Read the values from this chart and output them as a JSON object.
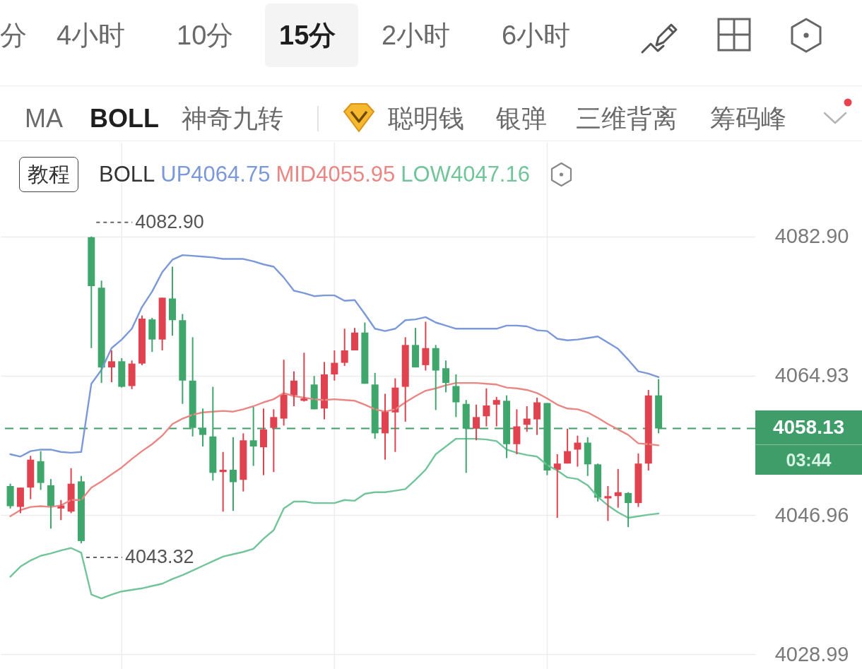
{
  "chart_data": [
    {
      "type": "other",
      "annotations": [
        "分",
        "4小时",
        "10分",
        "15分",
        "2小时",
        "6小时"
      ]
    },
    {
      "type": "other",
      "annotations": [
        "MA",
        "BOLL",
        "神奇九转",
        "聪明钱",
        "银弹",
        "三维背离",
        "筹码峰"
      ]
    },
    {
      "type": "candlestick",
      "categories": [
        null,
        null,
        null,
        null,
        null,
        null,
        null,
        null,
        null,
        null,
        null,
        null,
        null,
        null,
        null,
        null,
        null,
        null,
        null,
        null,
        null,
        null,
        null,
        null,
        null,
        null,
        null,
        null,
        null,
        null,
        null,
        null,
        null,
        null,
        null,
        null,
        null,
        null,
        null,
        null,
        null,
        null,
        null,
        null,
        null,
        null,
        null,
        null,
        null,
        null,
        null,
        null,
        null,
        null,
        null,
        null,
        null,
        null,
        null,
        null,
        null,
        null,
        null,
        null,
        null
      ],
      "ohlc": [
        [
          4050.7,
          4051.0,
          4047.8,
          4048.1
        ],
        [
          4048.0,
          4050.5,
          4047.2,
          4050.5
        ],
        [
          4050.5,
          4054.6,
          4049.0,
          4054.1
        ],
        [
          4053.9,
          4055.2,
          4050.2,
          4051.1
        ],
        [
          4050.8,
          4051.6,
          4045.2,
          4048.1
        ],
        [
          4047.8,
          4048.9,
          4046.3,
          4048.2
        ],
        [
          4047.4,
          4053.0,
          4047.2,
          4051.0
        ],
        [
          4051.3,
          4052.0,
          4043.32,
          4043.6
        ],
        [
          4082.8,
          4082.9,
          4068.5,
          4076.5
        ],
        [
          4076.3,
          4077.2,
          4064.0,
          4066.0
        ],
        [
          4066.0,
          4068.2,
          4064.1,
          4066.8
        ],
        [
          4066.8,
          4067.2,
          4063.4,
          4063.5
        ],
        [
          4063.6,
          4066.9,
          4063.2,
          4066.5
        ],
        [
          4066.5,
          4072.7,
          4066.3,
          4072.3
        ],
        [
          4072.2,
          4072.4,
          4068.0,
          4069.6
        ],
        [
          4069.6,
          4075.0,
          4068.2,
          4075.0
        ],
        [
          4074.9,
          4079.0,
          4070.1,
          4072.1
        ],
        [
          4072.1,
          4072.9,
          4061.3,
          4064.3
        ],
        [
          4064.3,
          4069.9,
          4057.1,
          4058.2
        ],
        [
          4058.2,
          4060.7,
          4055.8,
          4057.3
        ],
        [
          4057.1,
          4063.5,
          4051.4,
          4052.4
        ],
        [
          4052.5,
          4055.1,
          4047.4,
          4052.8
        ],
        [
          4052.8,
          4057.0,
          4047.5,
          4051.2
        ],
        [
          4051.5,
          4057.5,
          4050.0,
          4056.6
        ],
        [
          4056.6,
          4060.9,
          4053.3,
          4055.8
        ],
        [
          4055.7,
          4060.7,
          4052.1,
          4058.0
        ],
        [
          4058.2,
          4060.6,
          4052.5,
          4059.6
        ],
        [
          4059.4,
          4067.0,
          4058.5,
          4062.5
        ],
        [
          4062.4,
          4065.5,
          4061.0,
          4064.3
        ],
        [
          4061.7,
          4067.9,
          4061.6,
          4062.0
        ],
        [
          4063.8,
          4064.9,
          4060.6,
          4060.6
        ],
        [
          4060.7,
          4066.7,
          4059.3,
          4065.1
        ],
        [
          4065.1,
          4068.2,
          4064.3,
          4066.6
        ],
        [
          4066.6,
          4071.0,
          4066.2,
          4068.2
        ],
        [
          4068.2,
          4071.1,
          4068.2,
          4070.5
        ],
        [
          4070.5,
          4071.8,
          4063.9,
          4063.9
        ],
        [
          4063.8,
          4065.3,
          4056.8,
          4057.5
        ],
        [
          4057.5,
          4062.6,
          4054.1,
          4060.3
        ],
        [
          4060.2,
          4064.6,
          4055.1,
          4063.4
        ],
        [
          4063.5,
          4069.9,
          4059.0,
          4068.9
        ],
        [
          4068.9,
          4071.1,
          4066.0,
          4066.0
        ],
        [
          4066.3,
          4071.9,
          4065.6,
          4068.5
        ],
        [
          4068.5,
          4068.9,
          4060.5,
          4065.6
        ],
        [
          4065.9,
          4066.9,
          4062.8,
          4064.0
        ],
        [
          4063.6,
          4065.1,
          4059.6,
          4061.5
        ],
        [
          4061.3,
          4061.8,
          4052.4,
          4058.1
        ],
        [
          4058.1,
          4061.2,
          4056.6,
          4059.6
        ],
        [
          4059.7,
          4063.3,
          4058.4,
          4061.1
        ],
        [
          4061.2,
          4062.2,
          4058.4,
          4061.8
        ],
        [
          4061.7,
          4062.4,
          4054.3,
          4056.1
        ],
        [
          4056.1,
          4060.6,
          4054.8,
          4058.4
        ],
        [
          4058.6,
          4061.0,
          4057.7,
          4059.4
        ],
        [
          4059.3,
          4062.1,
          4057.3,
          4061.5
        ],
        [
          4061.4,
          4061.4,
          4052.1,
          4052.7
        ],
        [
          4052.8,
          4054.8,
          4046.6,
          4053.6
        ],
        [
          4053.6,
          4058.1,
          4053.6,
          4055.2
        ],
        [
          4055.4,
          4057.2,
          4053.2,
          4056.3
        ],
        [
          4056.3,
          4057.0,
          4052.0,
          4053.5
        ],
        [
          4053.5,
          4053.6,
          4048.7,
          4049.2
        ],
        [
          4049.1,
          4050.7,
          4046.2,
          4049.4
        ],
        [
          4049.4,
          4052.9,
          4047.9,
          4049.9
        ],
        [
          4049.8,
          4049.9,
          4045.4,
          4048.5
        ],
        [
          4048.5,
          4054.9,
          4048.0,
          4053.6
        ],
        [
          4053.6,
          4063.1,
          4052.7,
          4062.4
        ],
        [
          4062.4,
          4064.5,
          4057.5,
          4058.13
        ]
      ],
      "colors": [
        "#3fa66c",
        "#e0434f",
        "#e0434f",
        "#3fa66c",
        "#3fa66c",
        "#e0434f",
        "#e0434f",
        "#3fa66c",
        "#3fa66c",
        "#3fa66c",
        "#e0434f",
        "#3fa66c",
        "#e0434f",
        "#e0434f",
        "#3fa66c",
        "#e0434f",
        "#3fa66c",
        "#3fa66c",
        "#3fa66c",
        "#3fa66c",
        "#3fa66c",
        "#e0434f",
        "#3fa66c",
        "#e0434f",
        "#3fa66c",
        "#e0434f",
        "#e0434f",
        "#e0434f",
        "#e0434f",
        "#e0434f",
        "#3fa66c",
        "#e0434f",
        "#e0434f",
        "#e0434f",
        "#e0434f",
        "#3fa66c",
        "#3fa66c",
        "#e0434f",
        "#e0434f",
        "#e0434f",
        "#3fa66c",
        "#e0434f",
        "#3fa66c",
        "#3fa66c",
        "#3fa66c",
        "#3fa66c",
        "#e0434f",
        "#e0434f",
        "#e0434f",
        "#3fa66c",
        "#e0434f",
        "#e0434f",
        "#e0434f",
        "#3fa66c",
        "#e0434f",
        "#e0434f",
        "#e0434f",
        "#3fa66c",
        "#3fa66c",
        "#e0434f",
        "#e0434f",
        "#3fa66c",
        "#e0434f",
        "#e0434f",
        "#3fa66c"
      ],
      "series": [
        {
          "type": "line",
          "name": "UP4064.75",
          "color": "#7b98d8",
          "values": [
            4054.8,
            4054.5,
            4055.2,
            4055.4,
            4055.4,
            4055.1,
            4055.0,
            4055.1,
            4063.9,
            4065.7,
            4068.5,
            4069.6,
            4071.0,
            4073.8,
            4075.8,
            4078.3,
            4079.9,
            4080.5,
            4080.4,
            4080.3,
            4080.2,
            4080.0,
            4080.0,
            4080.0,
            4079.7,
            4079.3,
            4079.0,
            4077.6,
            4075.9,
            4075.6,
            4075.2,
            4075.3,
            4075.3,
            4074.6,
            4074.7,
            4072.9,
            4071.0,
            4070.7,
            4071.0,
            4072.1,
            4072.2,
            4072.5,
            4071.8,
            4071.4,
            4071.0,
            4071.0,
            4071.0,
            4071.0,
            4071.0,
            4071.4,
            4071.4,
            4071.3,
            4070.8,
            4070.7,
            4069.7,
            4069.5,
            4069.6,
            4069.8,
            4070.0,
            4069.2,
            4068.4,
            4067.0,
            4065.5,
            4065.2,
            4064.75
          ]
        },
        {
          "type": "line",
          "name": "MID4055.95",
          "color": "#ea8784",
          "values": [
            4046.8,
            4047.6,
            4048.0,
            4048.1,
            4048.0,
            4048.2,
            4048.9,
            4048.9,
            4050.5,
            4051.3,
            4052.2,
            4053.1,
            4054.2,
            4055.2,
            4056.1,
            4057.2,
            4058.7,
            4059.4,
            4059.9,
            4060.2,
            4060.3,
            4060.4,
            4060.3,
            4060.6,
            4061.0,
            4061.5,
            4061.9,
            4062.7,
            4062.3,
            4062.1,
            4061.9,
            4061.8,
            4061.9,
            4061.8,
            4061.7,
            4061.2,
            4060.6,
            4060.3,
            4060.6,
            4061.5,
            4062.3,
            4063.0,
            4063.3,
            4063.7,
            4064.0,
            4064.0,
            4064.0,
            4063.9,
            4063.8,
            4063.4,
            4063.3,
            4063.1,
            4062.7,
            4062.0,
            4061.2,
            4060.7,
            4060.6,
            4060.2,
            4059.5,
            4058.7,
            4058.0,
            4057.3,
            4056.2,
            4056.1,
            4055.95
          ]
        },
        {
          "type": "line",
          "name": "LOW4047.16",
          "color": "#72c49a",
          "values": [
            4039.0,
            4040.3,
            4041.1,
            4041.7,
            4042.0,
            4042.4,
            4042.7,
            4042.1,
            4036.7,
            4036.2,
            4036.7,
            4037.1,
            4037.3,
            4037.5,
            4037.8,
            4038.1,
            4038.7,
            4039.2,
            4039.8,
            4040.4,
            4041.0,
            4041.6,
            4041.9,
            4042.2,
            4042.6,
            4043.9,
            4045.0,
            4047.8,
            4048.7,
            4048.7,
            4048.5,
            4048.5,
            4048.5,
            4048.9,
            4048.8,
            4049.7,
            4049.9,
            4049.9,
            4050.1,
            4050.3,
            4051.5,
            4052.8,
            4054.8,
            4055.8,
            4056.8,
            4056.8,
            4056.8,
            4056.7,
            4056.5,
            4055.4,
            4055.0,
            4054.7,
            4054.5,
            4053.4,
            4052.7,
            4051.8,
            4051.6,
            4050.8,
            4049.3,
            4048.2,
            4047.3,
            4046.6,
            4046.8,
            4047.0,
            4047.16
          ]
        }
      ],
      "legend_title": "BOLL",
      "legend": "top left",
      "ylim": [
        4027.0,
        4095.0
      ],
      "yticks": [
        {
          "value": 4082.9,
          "label": "4082.90"
        },
        4064.93,
        4046.96,
        4028.99
      ],
      "grid": true,
      "ref_lines": [
        {
          "axis": "y",
          "value": 4058.13,
          "color": "#3e9d69",
          "line_style": "dashed"
        }
      ],
      "annotations": [
        "教程",
        "4082.90",
        "4043.32",
        "4058.13",
        "03:44"
      ]
    }
  ]
}
